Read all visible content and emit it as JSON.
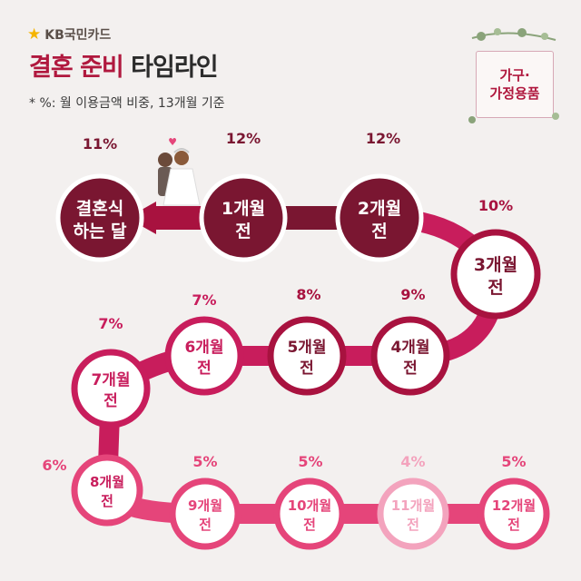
{
  "header": {
    "logo_text": "KB국민카드",
    "title_part1": "결혼 준비",
    "title_part2": "타임라인",
    "subtitle": "* %: 월 이용금액 비중, 13개월 기준"
  },
  "badge": {
    "line1": "가구·",
    "line2": "가정용품"
  },
  "colors": {
    "dark": "#7a1631",
    "mid": "#a8123f",
    "light": "#c81d5c",
    "pink": "#e5457a",
    "pale": "#f3a3bd",
    "background": "#f3f0ef"
  },
  "chart_data": {
    "type": "timeline",
    "title": "결혼 준비 타임라인",
    "note": "* %: 월 이용금액 비중, 13개월 기준",
    "category": "가구·가정용품",
    "points": [
      {
        "line1": "결혼식",
        "line2": "하는 달",
        "value": 11
      },
      {
        "line1": "1개월",
        "line2": "전",
        "value": 12
      },
      {
        "line1": "2개월",
        "line2": "전",
        "value": 12
      },
      {
        "line1": "3개월",
        "line2": "전",
        "value": 10
      },
      {
        "line1": "4개월",
        "line2": "전",
        "value": 9
      },
      {
        "line1": "5개월",
        "line2": "전",
        "value": 8
      },
      {
        "line1": "6개월",
        "line2": "전",
        "value": 7
      },
      {
        "line1": "7개월",
        "line2": "전",
        "value": 7
      },
      {
        "line1": "8개월",
        "line2": "전",
        "value": 6
      },
      {
        "line1": "9개월",
        "line2": "전",
        "value": 5
      },
      {
        "line1": "10개월",
        "line2": "전",
        "value": 5
      },
      {
        "line1": "11개월",
        "line2": "전",
        "value": 4
      },
      {
        "line1": "12개월",
        "line2": "전",
        "value": 5
      }
    ]
  }
}
